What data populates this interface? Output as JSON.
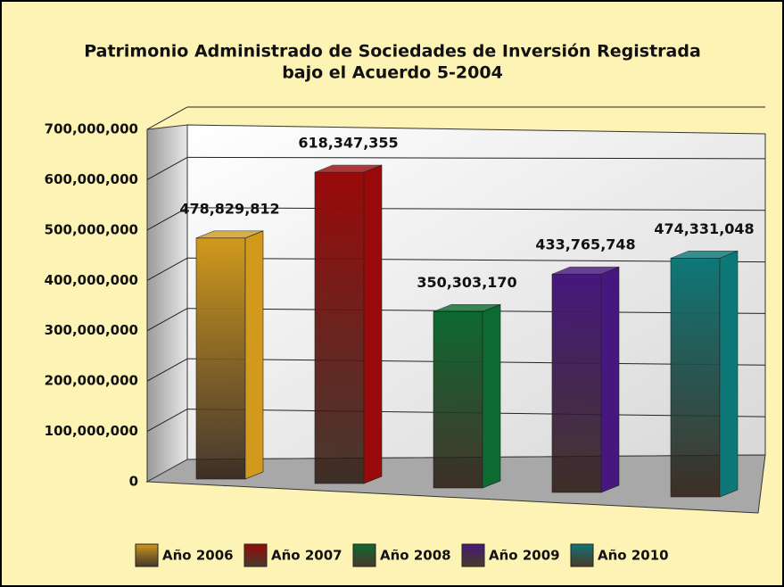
{
  "chart_data": {
    "type": "bar3d",
    "title": [
      "Patrimonio Administrado de Sociedades de Inversión Registrada",
      "bajo el Acuerdo 5-2004"
    ],
    "categories": [
      "Año 2006",
      "Año 2007",
      "Año 2008",
      "Año 2009",
      "Año 2010"
    ],
    "values": [
      478829812,
      618347355,
      350303170,
      433765748,
      474331048
    ],
    "value_labels": [
      "478,829,812",
      "618,347,355",
      "350,303,170",
      "433,765,748",
      "474,331,048"
    ],
    "colors": [
      "#d19a1c",
      "#9a0a0a",
      "#0d6a30",
      "#46177e",
      "#0e7878"
    ],
    "ylim": [
      0,
      700000000
    ],
    "yticks": [
      0,
      {
        "value": 100000000,
        "label": "100,000,000"
      },
      {
        "value": 200000000,
        "label": "200,000,000"
      },
      {
        "value": 300000000,
        "label": "300,000,000"
      },
      {
        "value": 400000000,
        "label": "400,000,000"
      },
      {
        "value": 500000000,
        "label": "500,000,000"
      },
      {
        "value": 600000000,
        "label": "600,000,000"
      },
      {
        "value": 700000000,
        "label": "700,000,000"
      }
    ],
    "grid": true,
    "legend": "bottom"
  }
}
